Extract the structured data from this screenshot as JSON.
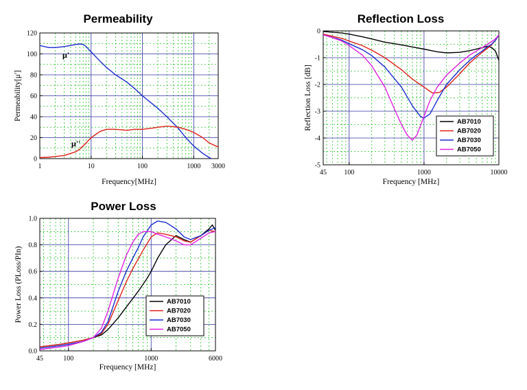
{
  "colors": {
    "AB7010": "#000000",
    "AB7020": "#e0201a",
    "AB7030": "#1a2ad0",
    "AB7050": "#e020e0",
    "mu_prime": "#1a2ad0",
    "mu_dprime": "#e0201a",
    "grid_major": "#3030a0",
    "grid_minor": "#20c020"
  },
  "chart_data": [
    {
      "type": "line",
      "title": "Permeability",
      "xlabel": "Frequency[MHz]",
      "ylabel": "Permeability[μ']",
      "xscale": "log",
      "xlim": [
        1,
        3000
      ],
      "ylim": [
        0,
        120
      ],
      "xtick_labels": [
        "1",
        "10",
        "100",
        "1000",
        "3000"
      ],
      "ytick_labels": [
        "0",
        "20",
        "40",
        "60",
        "80",
        "100",
        "120"
      ],
      "grid": true,
      "annotations": [
        "μ'",
        "μ''"
      ],
      "series": [
        {
          "name": "μ'",
          "x": [
            1,
            1.5,
            2,
            3,
            5,
            6,
            7,
            8,
            10,
            15,
            20,
            30,
            50,
            70,
            100,
            150,
            200,
            300,
            500,
            700,
            1000,
            1500,
            2000,
            3000
          ],
          "values": [
            108,
            106,
            106,
            107,
            109,
            109.5,
            109,
            107,
            102,
            93,
            87,
            80,
            73,
            67,
            60,
            53,
            48,
            40,
            29,
            20,
            12,
            5,
            1,
            -3
          ]
        },
        {
          "name": "μ''",
          "x": [
            1,
            1.5,
            2,
            3,
            4,
            5,
            6,
            8,
            10,
            15,
            20,
            30,
            50,
            70,
            100,
            150,
            200,
            300,
            500,
            700,
            1000,
            1500,
            2000,
            3000
          ],
          "values": [
            1,
            1.3,
            2,
            3,
            5,
            6.5,
            9,
            15,
            20,
            26,
            28,
            28,
            27,
            28,
            28,
            29,
            30,
            31,
            30,
            28,
            25,
            20,
            15,
            11
          ]
        }
      ]
    },
    {
      "type": "line",
      "title": "Reflection Loss",
      "xlabel": "Frequency [MHz]",
      "ylabel": "Reflection Loss [dB]",
      "xscale": "log",
      "xlim": [
        45,
        10000
      ],
      "ylim": [
        -5,
        0
      ],
      "xtick_labels": [
        "45",
        "100",
        "1000",
        "10000"
      ],
      "ytick_labels": [
        "0",
        "-1",
        "-2",
        "-3",
        "-4",
        "-5"
      ],
      "grid": true,
      "legend": "lower-right",
      "series": [
        {
          "name": "AB7010",
          "x": [
            45,
            60,
            80,
            100,
            150,
            200,
            300,
            500,
            700,
            1000,
            1500,
            2000,
            3000,
            4000,
            5000,
            6000,
            7000,
            8000,
            9000,
            10000
          ],
          "values": [
            -0.02,
            -0.05,
            -0.08,
            -0.12,
            -0.22,
            -0.3,
            -0.42,
            -0.52,
            -0.6,
            -0.68,
            -0.78,
            -0.82,
            -0.8,
            -0.74,
            -0.68,
            -0.62,
            -0.58,
            -0.62,
            -0.75,
            -1.1
          ]
        },
        {
          "name": "AB7020",
          "x": [
            45,
            60,
            80,
            100,
            150,
            200,
            300,
            500,
            700,
            1000,
            1300,
            1600,
            2000,
            3000,
            4000,
            5000,
            6000,
            7000,
            8000,
            9000,
            10000
          ],
          "values": [
            -0.12,
            -0.2,
            -0.28,
            -0.38,
            -0.55,
            -0.72,
            -1.0,
            -1.45,
            -1.8,
            -2.1,
            -2.32,
            -2.3,
            -2.1,
            -1.6,
            -1.22,
            -0.98,
            -0.8,
            -0.65,
            -0.52,
            -0.35,
            -0.15
          ]
        },
        {
          "name": "AB7030",
          "x": [
            45,
            60,
            80,
            100,
            150,
            200,
            300,
            500,
            700,
            900,
            1000,
            1200,
            1500,
            2000,
            3000,
            4000,
            5000,
            6000,
            7000,
            8000,
            9000,
            10000
          ],
          "values": [
            -0.15,
            -0.24,
            -0.35,
            -0.48,
            -0.7,
            -0.92,
            -1.35,
            -2.1,
            -2.8,
            -3.2,
            -3.25,
            -3.1,
            -2.6,
            -2.0,
            -1.45,
            -1.12,
            -0.9,
            -0.75,
            -0.6,
            -0.5,
            -0.35,
            -0.15
          ]
        },
        {
          "name": "AB7050",
          "x": [
            45,
            60,
            80,
            100,
            150,
            200,
            300,
            400,
            500,
            600,
            700,
            800,
            1000,
            1200,
            1500,
            2000,
            3000,
            4000,
            5000,
            6000,
            7000,
            8000,
            9000,
            10000
          ],
          "values": [
            -0.15,
            -0.25,
            -0.38,
            -0.55,
            -0.9,
            -1.3,
            -2.1,
            -2.9,
            -3.5,
            -3.9,
            -4.08,
            -3.9,
            -3.2,
            -2.6,
            -2.1,
            -1.65,
            -1.2,
            -0.92,
            -0.75,
            -0.62,
            -0.5,
            -0.4,
            -0.3,
            -0.15
          ]
        }
      ]
    },
    {
      "type": "line",
      "title": "Power Loss",
      "xlabel": "Frequency [MHz]",
      "ylabel": "Power Loss (PLoss/PIn)",
      "xscale": "log",
      "xlim": [
        45,
        6000
      ],
      "ylim": [
        0,
        1
      ],
      "xtick_labels": [
        "45",
        "100",
        "1000",
        "6000"
      ],
      "ytick_labels": [
        "0.0",
        "0.2",
        "0.4",
        "0.6",
        "0.8",
        "1.0"
      ],
      "grid": true,
      "legend": "lower-right",
      "series": [
        {
          "name": "AB7010",
          "x": [
            45,
            60,
            80,
            100,
            150,
            200,
            250,
            300,
            400,
            500,
            700,
            900,
            1000,
            1200,
            1500,
            2000,
            2500,
            3000,
            4000,
            5000,
            5500,
            6000
          ],
          "values": [
            0.03,
            0.04,
            0.05,
            0.06,
            0.08,
            0.1,
            0.12,
            0.16,
            0.25,
            0.33,
            0.45,
            0.55,
            0.6,
            0.7,
            0.8,
            0.87,
            0.84,
            0.82,
            0.87,
            0.92,
            0.95,
            0.91
          ]
        },
        {
          "name": "AB7020",
          "x": [
            45,
            60,
            80,
            100,
            150,
            200,
            250,
            300,
            400,
            500,
            600,
            800,
            1000,
            1200,
            1500,
            2000,
            2500,
            3000,
            4000,
            5000,
            6000
          ],
          "values": [
            0.03,
            0.04,
            0.05,
            0.06,
            0.08,
            0.1,
            0.13,
            0.2,
            0.38,
            0.52,
            0.62,
            0.76,
            0.86,
            0.89,
            0.88,
            0.86,
            0.83,
            0.82,
            0.87,
            0.91,
            0.9
          ]
        },
        {
          "name": "AB7030",
          "x": [
            45,
            60,
            80,
            100,
            150,
            200,
            250,
            300,
            400,
            500,
            600,
            700,
            800,
            1000,
            1200,
            1500,
            2000,
            2500,
            3000,
            4000,
            5000,
            6000
          ],
          "values": [
            0.02,
            0.03,
            0.04,
            0.05,
            0.07,
            0.1,
            0.14,
            0.22,
            0.45,
            0.6,
            0.7,
            0.78,
            0.86,
            0.95,
            0.98,
            0.97,
            0.92,
            0.86,
            0.84,
            0.87,
            0.91,
            0.93
          ]
        },
        {
          "name": "AB7050",
          "x": [
            45,
            60,
            80,
            100,
            150,
            200,
            250,
            300,
            400,
            500,
            600,
            700,
            800,
            1000,
            1200,
            1500,
            2000,
            2500,
            3000,
            4000,
            5000,
            6000
          ],
          "values": [
            0.01,
            0.02,
            0.03,
            0.04,
            0.07,
            0.1,
            0.17,
            0.3,
            0.55,
            0.72,
            0.82,
            0.88,
            0.9,
            0.9,
            0.88,
            0.86,
            0.83,
            0.8,
            0.8,
            0.85,
            0.89,
            0.9
          ]
        }
      ]
    }
  ]
}
